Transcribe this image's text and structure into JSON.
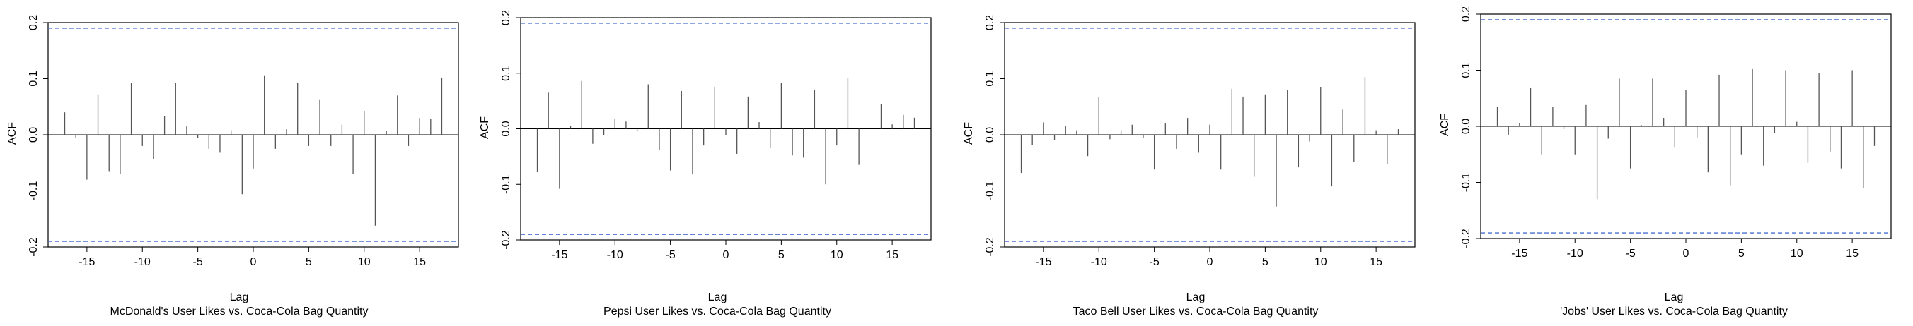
{
  "chart_data": [
    {
      "type": "bar",
      "subtitle": "McDonald's User Likes vs. Coca-Cola Bag Quantity",
      "xlabel": "Lag",
      "ylabel": "ACF",
      "xlim": [
        -18.5,
        18.5
      ],
      "ylim": [
        -0.2,
        0.2
      ],
      "xticks": [
        -15,
        -10,
        -5,
        0,
        5,
        10,
        15
      ],
      "yticks": [
        -0.2,
        -0.1,
        0.0,
        0.1,
        0.2
      ],
      "confidence_bound": 0.19,
      "lags": [
        -17,
        -16,
        -15,
        -14,
        -13,
        -12,
        -11,
        -10,
        -9,
        -8,
        -7,
        -6,
        -5,
        -4,
        -3,
        -2,
        -1,
        0,
        1,
        2,
        3,
        4,
        5,
        6,
        7,
        8,
        9,
        10,
        11,
        12,
        13,
        14,
        15,
        16,
        17
      ],
      "values": [
        0.04,
        -0.005,
        -0.08,
        0.072,
        -0.066,
        -0.07,
        0.092,
        -0.02,
        -0.043,
        0.033,
        0.093,
        0.015,
        -0.005,
        -0.025,
        -0.032,
        0.008,
        -0.106,
        -0.06,
        0.106,
        -0.025,
        0.01,
        0.093,
        -0.02,
        0.062,
        -0.02,
        0.018,
        -0.07,
        0.042,
        -0.162,
        0.007,
        0.07,
        -0.02,
        0.03,
        0.028,
        0.102
      ]
    },
    {
      "type": "bar",
      "subtitle": "Pepsi User Likes vs. Coca-Cola Bag Quantity",
      "xlabel": "Lag",
      "ylabel": "ACF",
      "xlim": [
        -18.5,
        18.5
      ],
      "ylim": [
        -0.2,
        0.2
      ],
      "xticks": [
        -15,
        -10,
        -5,
        0,
        5,
        10,
        15
      ],
      "yticks": [
        -0.2,
        -0.1,
        0.0,
        0.1,
        0.2
      ],
      "confidence_bound": 0.19,
      "lags": [
        -17,
        -16,
        -15,
        -14,
        -13,
        -12,
        -11,
        -10,
        -9,
        -8,
        -7,
        -6,
        -5,
        -4,
        -3,
        -2,
        -1,
        0,
        1,
        2,
        3,
        4,
        5,
        6,
        7,
        8,
        9,
        10,
        11,
        12,
        13,
        14,
        15,
        16,
        17
      ],
      "values": [
        -0.078,
        0.065,
        -0.108,
        0.005,
        0.086,
        -0.027,
        -0.012,
        0.018,
        0.013,
        -0.005,
        0.08,
        -0.038,
        -0.075,
        0.068,
        -0.082,
        -0.03,
        0.075,
        -0.012,
        -0.045,
        0.058,
        0.012,
        -0.035,
        0.082,
        -0.048,
        -0.052,
        0.07,
        -0.1,
        -0.03,
        0.092,
        -0.065,
        0.0,
        0.045,
        0.008,
        0.025,
        0.02
      ]
    },
    {
      "type": "bar",
      "subtitle": "Taco Bell User Likes vs. Coca-Cola Bag Quantity",
      "xlabel": "Lag",
      "ylabel": "ACF",
      "xlim": [
        -18.5,
        18.5
      ],
      "ylim": [
        -0.2,
        0.2
      ],
      "xticks": [
        -15,
        -10,
        -5,
        0,
        5,
        10,
        15
      ],
      "yticks": [
        -0.2,
        -0.1,
        0.0,
        0.1,
        0.2
      ],
      "confidence_bound": 0.19,
      "lags": [
        -17,
        -16,
        -15,
        -14,
        -13,
        -12,
        -11,
        -10,
        -9,
        -8,
        -7,
        -6,
        -5,
        -4,
        -3,
        -2,
        -1,
        0,
        1,
        2,
        3,
        4,
        5,
        6,
        7,
        8,
        9,
        10,
        11,
        12,
        13,
        14,
        15,
        16,
        17
      ],
      "values": [
        -0.068,
        -0.018,
        0.022,
        -0.01,
        0.015,
        0.008,
        -0.038,
        0.068,
        -0.008,
        0.008,
        0.018,
        -0.005,
        -0.062,
        0.02,
        -0.025,
        0.03,
        -0.032,
        0.018,
        -0.062,
        0.082,
        0.068,
        -0.075,
        0.072,
        -0.128,
        0.08,
        -0.058,
        -0.012,
        0.085,
        -0.092,
        0.045,
        -0.048,
        0.103,
        0.008,
        -0.052,
        0.01
      ]
    },
    {
      "type": "bar",
      "subtitle": "'Jobs' User Likes vs. Coca-Cola Bag Quantity",
      "xlabel": "Lag",
      "ylabel": "ACF",
      "xlim": [
        -18.5,
        18.5
      ],
      "ylim": [
        -0.2,
        0.2
      ],
      "xticks": [
        -15,
        -10,
        -5,
        0,
        5,
        10,
        15
      ],
      "yticks": [
        -0.2,
        -0.1,
        0.0,
        0.1,
        0.2
      ],
      "confidence_bound": 0.19,
      "lags": [
        -17,
        -16,
        -15,
        -14,
        -13,
        -12,
        -11,
        -10,
        -9,
        -8,
        -7,
        -6,
        -5,
        -4,
        -3,
        -2,
        -1,
        0,
        1,
        2,
        3,
        4,
        5,
        6,
        7,
        8,
        9,
        10,
        11,
        12,
        13,
        14,
        15,
        16,
        17
      ],
      "values": [
        0.035,
        -0.015,
        0.005,
        0.068,
        -0.05,
        0.035,
        -0.005,
        -0.05,
        0.038,
        -0.13,
        -0.022,
        0.085,
        -0.075,
        0.002,
        0.085,
        0.015,
        -0.038,
        0.065,
        -0.02,
        -0.082,
        0.092,
        -0.105,
        -0.05,
        0.102,
        -0.07,
        -0.012,
        0.1,
        0.008,
        -0.065,
        0.095,
        -0.045,
        -0.075,
        0.1,
        -0.11,
        -0.035
      ]
    }
  ],
  "colors": {
    "bar": "#555555",
    "axis": "#000000",
    "confidence_line": "#4a6fd4"
  }
}
